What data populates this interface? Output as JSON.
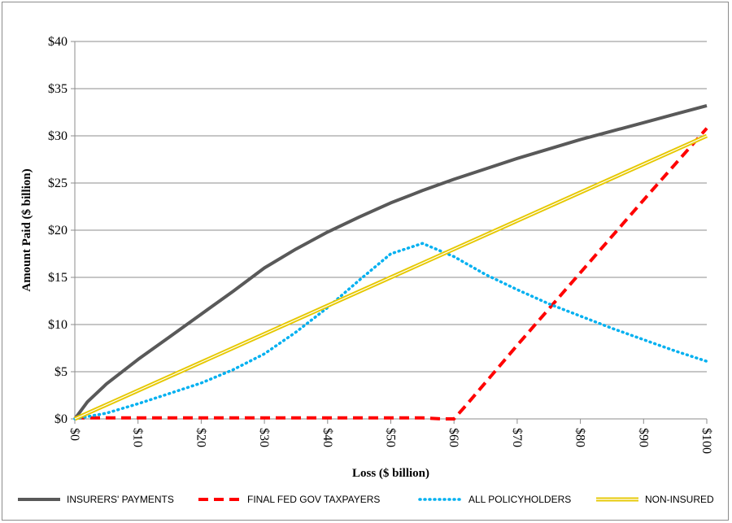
{
  "chart_data": {
    "type": "line",
    "xlabel": "Loss ($ billion)",
    "ylabel": "Amount Paid ($ billion)",
    "xlim": [
      0,
      100
    ],
    "ylim": [
      0,
      40
    ],
    "x_ticks": [
      0,
      10,
      20,
      30,
      40,
      50,
      60,
      70,
      80,
      90,
      100
    ],
    "x_tick_labels": [
      "$0",
      "$10",
      "$20",
      "$30",
      "$40",
      "$50",
      "$60",
      "$70",
      "$80",
      "$90",
      "$100"
    ],
    "y_ticks": [
      0,
      5,
      10,
      15,
      20,
      25,
      30,
      35,
      40
    ],
    "y_tick_labels": [
      "$0",
      "$5",
      "$10",
      "$15",
      "$20",
      "$25",
      "$30",
      "$35",
      "$40"
    ],
    "grid": "horizontal",
    "legend_position": "bottom",
    "series": [
      {
        "name": "INSURERS' PAYMENTS",
        "color": "#595959",
        "style": "solid",
        "x": [
          0,
          2,
          5,
          10,
          15,
          20,
          25,
          30,
          35,
          40,
          45,
          50,
          55,
          60,
          65,
          70,
          75,
          80,
          85,
          90,
          95,
          100
        ],
        "y": [
          0,
          1.8,
          3.7,
          6.3,
          8.7,
          11.1,
          13.5,
          16.0,
          18.0,
          19.8,
          21.4,
          22.9,
          24.2,
          25.4,
          26.5,
          27.6,
          28.6,
          29.6,
          30.5,
          31.4,
          32.3,
          33.2
        ]
      },
      {
        "name": "FINAL FED GOV TAXPAYERS",
        "color": "#ff0000",
        "style": "dashed",
        "x": [
          0,
          10,
          20,
          30,
          40,
          50,
          55,
          58,
          60,
          62,
          70,
          80,
          90,
          100
        ],
        "y": [
          0.1,
          0.1,
          0.1,
          0.1,
          0.1,
          0.1,
          0.1,
          0.0,
          0.0,
          1.5,
          7.8,
          15.5,
          23.2,
          30.8
        ]
      },
      {
        "name": "ALL POLICYHOLDERS",
        "color": "#00b0f0",
        "style": "dotted",
        "x": [
          0,
          5,
          10,
          15,
          20,
          25,
          30,
          35,
          40,
          45,
          50,
          55,
          60,
          65,
          70,
          75,
          80,
          85,
          90,
          95,
          100
        ],
        "y": [
          0,
          0.6,
          1.6,
          2.7,
          3.8,
          5.2,
          6.9,
          9.2,
          11.8,
          14.7,
          17.5,
          18.6,
          17.2,
          15.3,
          13.7,
          12.2,
          10.9,
          9.6,
          8.4,
          7.2,
          6.1
        ]
      },
      {
        "name": "NON-INSURED",
        "color": "#e6c800",
        "style": "double",
        "x": [
          0,
          100
        ],
        "y": [
          0,
          30
        ]
      }
    ]
  }
}
